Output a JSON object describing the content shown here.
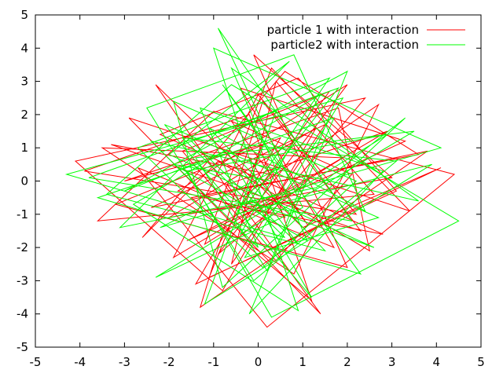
{
  "chart_data": {
    "type": "line",
    "title": "",
    "xlabel": "",
    "ylabel": "",
    "xlim": [
      -5,
      5
    ],
    "ylim": [
      -5,
      5
    ],
    "x_ticks": [
      "-5",
      "-4",
      "-3",
      "-2",
      "-1",
      "0",
      "1",
      "2",
      "3",
      "4",
      "5"
    ],
    "y_ticks": [
      "-5",
      "-4",
      "-3",
      "-2",
      "-1",
      "0",
      "1",
      "2",
      "3",
      "4",
      "5"
    ],
    "grid": false,
    "legend_position": "top-right",
    "series": [
      {
        "name": "particle 1 with interaction",
        "color": "#ff0000",
        "x": [
          0.2,
          1.1,
          -0.6,
          2.1,
          0.4,
          -1.7,
          1.6,
          -0.3,
          2.8,
          -2.2,
          0.9,
          3.1,
          -1.1,
          0.1,
          -3.0,
          1.8,
          2.5,
          -0.9,
          -2.6,
          0.6,
          3.6,
          -1.5,
          1.2,
          -0.2,
          -3.9,
          2.2,
          0.0,
          -1.9,
          2.9,
          -0.7,
          1.4,
          -2.9,
          3.4,
          0.3,
          -1.2,
          1.9,
          -3.5,
          0.8,
          2.7,
          -0.5,
          -2.3,
          1.0,
          4.1,
          -1.4,
          0.5,
          -3.2,
          2.0,
          -0.1,
          3.0,
          -2.0,
          1.3,
          -0.8,
          -4.1,
          2.4,
          0.7,
          -1.6,
          3.3,
          -0.4,
          1.7,
          -2.7,
          0.2,
          4.4,
          -1.0,
          -3.6,
          2.6,
          0.4,
          -0.6,
          1.5,
          -2.4,
          3.8,
          -1.3,
          0.1,
          2.3,
          -3.3,
          1.1,
          -0.9,
          2.0,
          -1.8,
          0.6,
          -0.2
        ],
        "y": [
          0.5,
          -1.3,
          1.8,
          0.2,
          -2.4,
          0.9,
          2.7,
          -0.8,
          -1.6,
          1.4,
          3.1,
          -0.3,
          -2.9,
          1.1,
          0.0,
          2.2,
          -2.1,
          0.6,
          -1.7,
          3.3,
          0.8,
          -0.5,
          -3.6,
          2.0,
          0.3,
          -1.0,
          2.6,
          -2.3,
          1.5,
          -0.1,
          -4.0,
          1.9,
          -0.9,
          3.4,
          -1.9,
          0.7,
          1.0,
          -2.8,
          2.3,
          -0.6,
          2.9,
          -1.4,
          0.4,
          -3.1,
          1.3,
          -0.7,
          -2.6,
          3.8,
          0.1,
          -1.1,
          1.6,
          -3.3,
          0.6,
          2.5,
          -0.2,
          -1.8,
          1.2,
          2.8,
          -2.0,
          0.4,
          -4.4,
          0.2,
          2.1,
          -1.2,
          -0.4,
          3.0,
          -2.5,
          1.7,
          -0.8,
          0.9,
          -3.8,
          2.4,
          -1.5,
          1.1,
          0.0,
          -2.2,
          2.9,
          -0.3,
          -1.1,
          0.7
        ]
      },
      {
        "name": "particle2 with interaction",
        "color": "#00ff00",
        "x": [
          -0.4,
          0.9,
          -1.5,
          1.8,
          -0.2,
          2.6,
          -2.0,
          0.7,
          -3.1,
          1.3,
          3.3,
          -0.8,
          -1.9,
          2.2,
          0.1,
          -2.7,
          1.6,
          -0.5,
          3.9,
          -1.2,
          0.4,
          -3.8,
          2.1,
          -0.9,
          1.0,
          -2.3,
          2.9,
          -1.6,
          0.3,
          4.5,
          -0.6,
          -3.4,
          1.5,
          -1.1,
          2.4,
          0.8,
          -2.5,
          -0.1,
          3.1,
          -1.7,
          0.6,
          -4.3,
          1.9,
          -0.3,
          2.7,
          -2.1,
          1.2,
          -0.7,
          -3.0,
          2.0,
          0.2,
          -1.4,
          3.5,
          -0.4,
          1.4,
          -2.8,
          0.9,
          -1.0,
          4.1,
          -2.2,
          0.5,
          -0.8,
          2.3,
          -3.6,
          1.7,
          -0.2,
          2.8,
          -1.3,
          0.0,
          -2.4,
          3.6,
          -0.6,
          1.1,
          -1.9,
          0.3
        ],
        "y": [
          0.4,
          -1.9,
          1.2,
          2.8,
          -0.6,
          -2.0,
          0.8,
          3.6,
          -1.4,
          -0.2,
          1.9,
          -3.2,
          2.4,
          0.0,
          -2.6,
          1.0,
          3.1,
          -1.0,
          0.5,
          -3.7,
          2.1,
          0.1,
          -1.2,
          4.6,
          -0.8,
          -2.9,
          1.4,
          0.3,
          -4.1,
          -1.2,
          2.9,
          -0.4,
          -2.1,
          1.6,
          -0.9,
          3.8,
          2.2,
          -3.0,
          0.6,
          1.3,
          -1.7,
          0.2,
          2.5,
          -2.3,
          -1.1,
          1.7,
          -3.5,
          0.9,
          -0.3,
          3.3,
          -2.7,
          0.7,
          1.5,
          -1.6,
          2.6,
          -0.7,
          -3.9,
          4.0,
          1.0,
          -1.4,
          0.4,
          2.9,
          -2.8,
          -0.5,
          1.9,
          -4.0,
          0.3,
          2.2,
          -2.0,
          1.2,
          -0.6,
          3.4,
          -1.8,
          0.5,
          0.0
        ]
      }
    ]
  }
}
